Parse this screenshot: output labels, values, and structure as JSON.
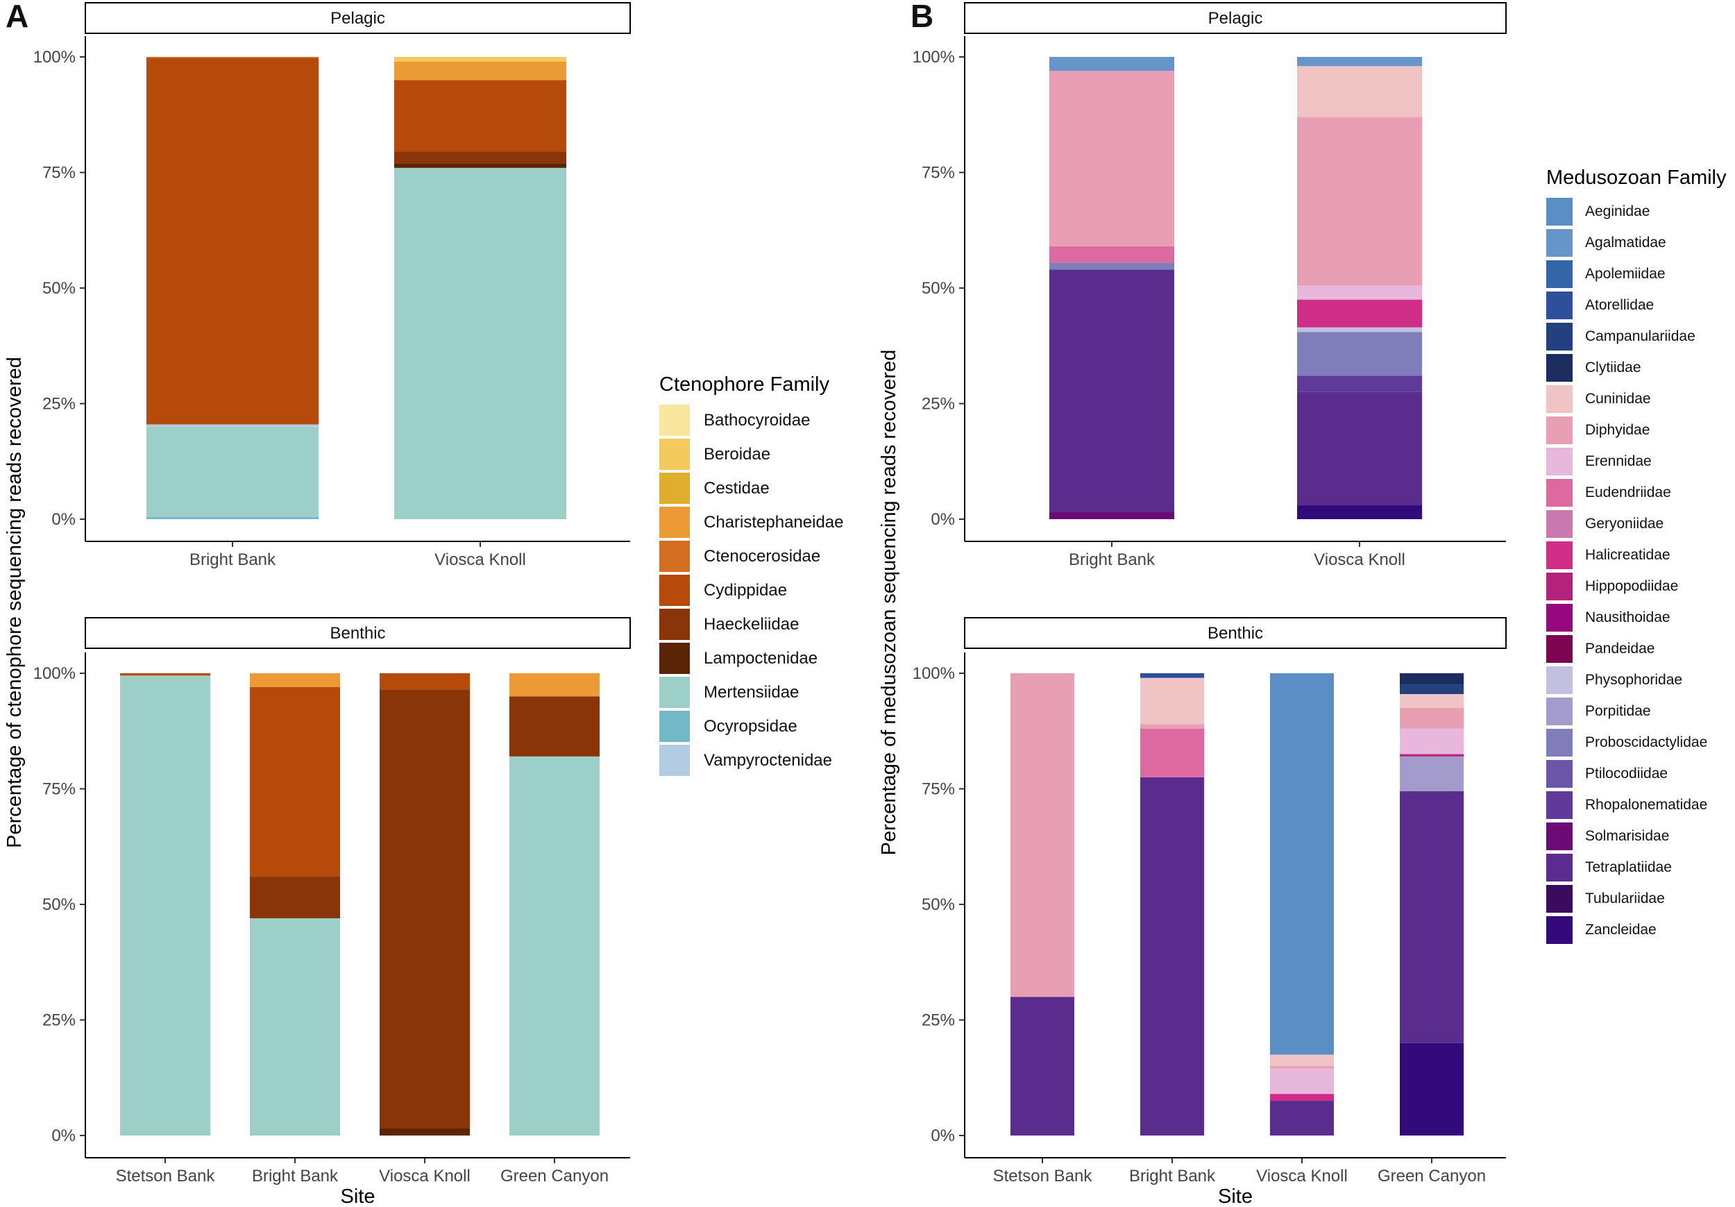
{
  "figure": {
    "panel_a_label": "A",
    "panel_b_label": "B"
  },
  "colors": {
    "Bathocyroidae": "#f9e79f",
    "Beroidae": "#f4c95d",
    "Cestidae": "#dfaf2c",
    "Charistephaneidae": "#ec9a35",
    "Ctenocerosidae": "#d46f22",
    "Cydippidae": "#b54a0b",
    "Haeckeliidae": "#8a3509",
    "Lampoctenidae": "#5c2407",
    "Mertensiidae": "#9ccfc8",
    "Ocyropsidae": "#73b8c9",
    "Vampyroctenidae": "#b2cde3",
    "Aeginidae": "#5b8ec4",
    "Agalmatidae": "#6595c9",
    "Apolemiidae": "#3465a7",
    "Atorellidae": "#2e4f9a",
    "Campanulariidae": "#23407f",
    "Clytiidae": "#1b2c5e",
    "Cuninidae": "#f0c4c4",
    "Diphyidae": "#e89fb4",
    "Erennidae": "#e8b8dc",
    "Eudendriidae": "#dc6aa0",
    "Geryoniidae": "#c979b0",
    "Halicreatidae": "#cf2d88",
    "Hippopodiidae": "#b4237b",
    "Nausithoidae": "#96087d",
    "Pandeidae": "#7d0653",
    "Physophoridae": "#c2c0e0",
    "Porpitidae": "#a29bcb",
    "Proboscidactylidae": "#807dbb",
    "Ptilocodiidae": "#6a55a8",
    "Rhopalonematidae": "#603a9a",
    "Solmarisidae": "#6b0c76",
    "Tetraplatiidae": "#5a2c8e",
    "Tubulariidae": "#3a0b5e",
    "Zancleidae": "#320a7c"
  },
  "chart_data": [
    {
      "type": "bar",
      "stacked": true,
      "panel": "A",
      "strip_label": "Pelagic",
      "categories": [
        "Bright Bank",
        "Viosca Knoll"
      ],
      "ylabel": "Percentage of ctenophore sequencing reads recovered",
      "xlabel": "",
      "ylim": [
        0,
        100
      ],
      "yticks": [
        "0%",
        "25%",
        "50%",
        "75%",
        "100%"
      ],
      "series": [
        {
          "name": "Ocyropsidae",
          "values": [
            0.5,
            0
          ]
        },
        {
          "name": "Mertensiidae",
          "values": [
            19.5,
            76
          ]
        },
        {
          "name": "Vampyroctenidae",
          "values": [
            0.5,
            0
          ]
        },
        {
          "name": "Lampoctenidae",
          "values": [
            0,
            1
          ]
        },
        {
          "name": "Haeckeliidae",
          "values": [
            0,
            2.5
          ]
        },
        {
          "name": "Cydippidae",
          "values": [
            79.3,
            15.5
          ]
        },
        {
          "name": "Ctenocerosidae",
          "values": [
            0.2,
            0
          ]
        },
        {
          "name": "Charistephaneidae",
          "values": [
            0,
            4
          ]
        },
        {
          "name": "Beroidae",
          "values": [
            0,
            1
          ]
        }
      ]
    },
    {
      "type": "bar",
      "stacked": true,
      "panel": "A",
      "strip_label": "Benthic",
      "categories": [
        "Stetson Bank",
        "Bright Bank",
        "Viosca Knoll",
        "Green Canyon"
      ],
      "ylabel": "Percentage of ctenophore sequencing reads recovered",
      "xlabel": "Site",
      "ylim": [
        0,
        100
      ],
      "yticks": [
        "0%",
        "25%",
        "50%",
        "75%",
        "100%"
      ],
      "series": [
        {
          "name": "Mertensiidae",
          "values": [
            99.5,
            47,
            0,
            82
          ]
        },
        {
          "name": "Lampoctenidae",
          "values": [
            0,
            0,
            1.5,
            0
          ]
        },
        {
          "name": "Haeckeliidae",
          "values": [
            0,
            9,
            95,
            13
          ]
        },
        {
          "name": "Cydippidae",
          "values": [
            0.5,
            41,
            3.5,
            0
          ]
        },
        {
          "name": "Charistephaneidae",
          "values": [
            0,
            3,
            0,
            5
          ]
        }
      ]
    },
    {
      "type": "bar",
      "stacked": true,
      "panel": "B",
      "strip_label": "Pelagic",
      "categories": [
        "Bright Bank",
        "Viosca Knoll"
      ],
      "ylabel": "Percentage of medusozoan sequencing reads recovered",
      "xlabel": "",
      "ylim": [
        0,
        100
      ],
      "yticks": [
        "0%",
        "25%",
        "50%",
        "75%",
        "100%"
      ],
      "series": [
        {
          "name": "Solmarisidae",
          "values": [
            1.5,
            0
          ]
        },
        {
          "name": "Zancleidae",
          "values": [
            0,
            3
          ]
        },
        {
          "name": "Tetraplatiidae",
          "values": [
            52.5,
            24.5
          ]
        },
        {
          "name": "Rhopalonematidae",
          "values": [
            0,
            3.5
          ]
        },
        {
          "name": "Proboscidactylidae",
          "values": [
            1.5,
            9.5
          ]
        },
        {
          "name": "Physophoridae",
          "values": [
            0,
            1
          ]
        },
        {
          "name": "Halicreatidae",
          "values": [
            0,
            6
          ]
        },
        {
          "name": "Eudendriidae",
          "values": [
            3.5,
            0
          ]
        },
        {
          "name": "Erennidae",
          "values": [
            0,
            3
          ]
        },
        {
          "name": "Diphyidae",
          "values": [
            38,
            36.5
          ]
        },
        {
          "name": "Cuninidae",
          "values": [
            0,
            11
          ]
        },
        {
          "name": "Agalmatidae",
          "values": [
            3,
            2
          ]
        }
      ]
    },
    {
      "type": "bar",
      "stacked": true,
      "panel": "B",
      "strip_label": "Benthic",
      "categories": [
        "Stetson Bank",
        "Bright Bank",
        "Viosca Knoll",
        "Green Canyon"
      ],
      "ylabel": "Percentage of medusozoan sequencing reads recovered",
      "xlabel": "Site",
      "ylim": [
        0,
        100
      ],
      "yticks": [
        "0%",
        "25%",
        "50%",
        "75%",
        "100%"
      ],
      "series": [
        {
          "name": "Zancleidae",
          "values": [
            0,
            0,
            0,
            20
          ]
        },
        {
          "name": "Tetraplatiidae",
          "values": [
            30,
            77.5,
            7.5,
            54.5
          ]
        },
        {
          "name": "Porpitidae",
          "values": [
            0,
            0,
            0,
            7.5
          ]
        },
        {
          "name": "Hippopodiidae",
          "values": [
            0,
            0,
            0,
            0.5
          ]
        },
        {
          "name": "Halicreatidae",
          "values": [
            0,
            0,
            1.5,
            0
          ]
        },
        {
          "name": "Erennidae",
          "values": [
            0,
            0,
            5.5,
            5.5
          ]
        },
        {
          "name": "Eudendriidae",
          "values": [
            0,
            10.5,
            0,
            0
          ]
        },
        {
          "name": "Diphyidae",
          "values": [
            70,
            1,
            0.5,
            4.5
          ]
        },
        {
          "name": "Cuninidae",
          "values": [
            0,
            10,
            2.5,
            3
          ]
        },
        {
          "name": "Aeginidae",
          "values": [
            0,
            0,
            82.5,
            0
          ]
        },
        {
          "name": "Atorellidae",
          "values": [
            0,
            1,
            0,
            0
          ]
        },
        {
          "name": "Campanulariidae",
          "values": [
            0,
            0,
            0,
            2
          ]
        },
        {
          "name": "Clytiidae",
          "values": [
            0,
            0,
            0,
            2.5
          ]
        }
      ]
    }
  ],
  "legend_a": {
    "title": "Ctenophore Family",
    "entries": [
      "Bathocyroidae",
      "Beroidae",
      "Cestidae",
      "Charistephaneidae",
      "Ctenocerosidae",
      "Cydippidae",
      "Haeckeliidae",
      "Lampoctenidae",
      "Mertensiidae",
      "Ocyropsidae",
      "Vampyroctenidae"
    ]
  },
  "legend_b": {
    "title": "Medusozoan Family",
    "entries": [
      "Aeginidae",
      "Agalmatidae",
      "Apolemiidae",
      "Atorellidae",
      "Campanulariidae",
      "Clytiidae",
      "Cuninidae",
      "Diphyidae",
      "Erennidae",
      "Eudendriidae",
      "Geryoniidae",
      "Halicreatidae",
      "Hippopodiidae",
      "Nausithoidae",
      "Pandeidae",
      "Physophoridae",
      "Porpitidae",
      "Proboscidactylidae",
      "Ptilocodiidae",
      "Rhopalonematidae",
      "Solmarisidae",
      "Tetraplatiidae",
      "Tubulariidae",
      "Zancleidae"
    ]
  }
}
